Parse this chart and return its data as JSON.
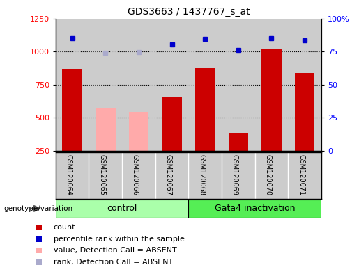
{
  "title": "GDS3663 / 1437767_s_at",
  "samples": [
    "GSM120064",
    "GSM120065",
    "GSM120066",
    "GSM120067",
    "GSM120068",
    "GSM120069",
    "GSM120070",
    "GSM120071"
  ],
  "bar_values": [
    870,
    575,
    545,
    655,
    875,
    385,
    1025,
    840
  ],
  "bar_absent": [
    false,
    true,
    true,
    false,
    false,
    false,
    false,
    false
  ],
  "dot_values": [
    1100,
    990,
    995,
    1055,
    1095,
    1015,
    1100,
    1085
  ],
  "dot_absent": [
    false,
    true,
    true,
    false,
    false,
    false,
    false,
    false
  ],
  "control_range": [
    0,
    3
  ],
  "gata4_range": [
    4,
    7
  ],
  "ylim_left": [
    250,
    1250
  ],
  "ylim_right": [
    0,
    100
  ],
  "yticks_left": [
    250,
    500,
    750,
    1000,
    1250
  ],
  "yticks_right": [
    0,
    25,
    50,
    75,
    100
  ],
  "right_tick_labels": [
    "0",
    "25",
    "50",
    "75",
    "100%"
  ],
  "color_bar_normal": "#cc0000",
  "color_bar_absent": "#ffaaaa",
  "color_dot_normal": "#0000cc",
  "color_dot_absent": "#aaaacc",
  "color_col_bg": "#cccccc",
  "color_control": "#aaffaa",
  "color_gata4": "#55ee55",
  "legend_items": [
    {
      "label": "count",
      "color": "#cc0000"
    },
    {
      "label": "percentile rank within the sample",
      "color": "#0000cc"
    },
    {
      "label": "value, Detection Call = ABSENT",
      "color": "#ffaaaa"
    },
    {
      "label": "rank, Detection Call = ABSENT",
      "color": "#aaaacc"
    }
  ],
  "genotype_label": "genotype/variation",
  "group_control_label": "control",
  "group_gata4_label": "Gata4 inactivation"
}
